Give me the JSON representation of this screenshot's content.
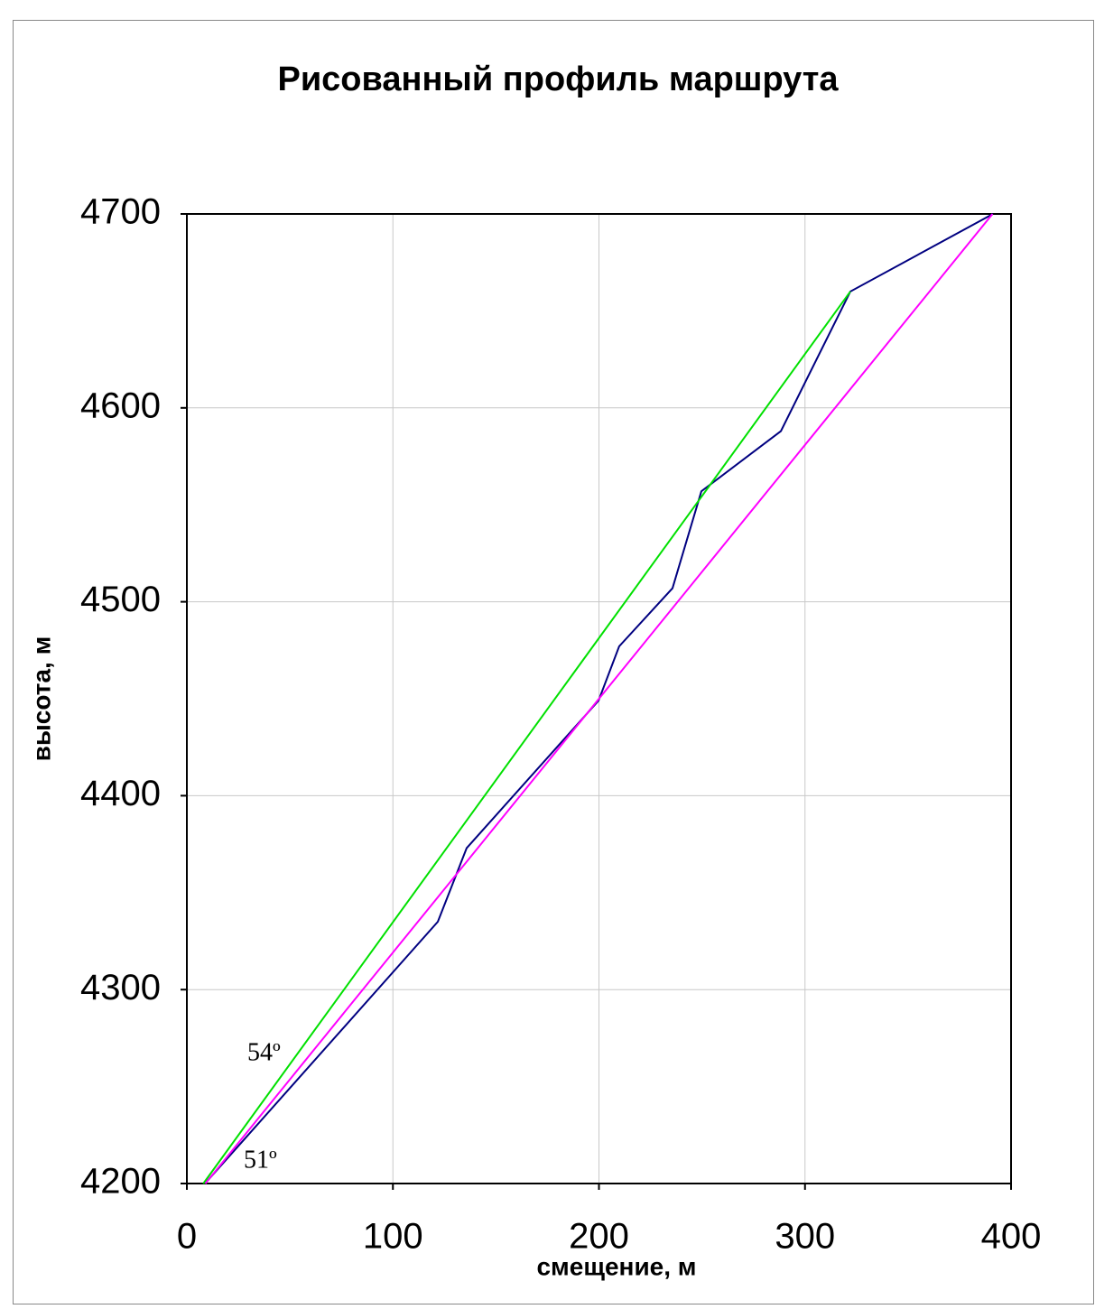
{
  "chart_data": {
    "type": "line",
    "title": "Рисованный профиль маршрута",
    "x_label": "смещение, м",
    "y_label": "высота, м",
    "series": [
      {
        "color": "#000080",
        "x": [
          8.8,
          121.8,
          135.8,
          199.8,
          209.8,
          235.7,
          249.7,
          288.3,
          322,
          391.2
        ],
        "values": [
          4200,
          4335,
          4373,
          4449,
          4477,
          4507,
          4557,
          4588,
          4660,
          4700
        ]
      },
      {
        "color": "#00e000",
        "x": [
          8,
          322
        ],
        "values": [
          4200,
          4660
        ]
      },
      {
        "color": "#ff00ff",
        "x": [
          9,
          391
        ],
        "values": [
          4200,
          4700
        ]
      }
    ],
    "annotations": [
      "54º",
      "51º"
    ],
    "xlim": [
      0,
      400
    ],
    "xticks": [
      0,
      100,
      200,
      300,
      400
    ],
    "ylim": [
      4200,
      4700
    ],
    "yticks": [
      4200,
      4300,
      4400,
      4500,
      4600,
      4700
    ],
    "grid": true
  }
}
